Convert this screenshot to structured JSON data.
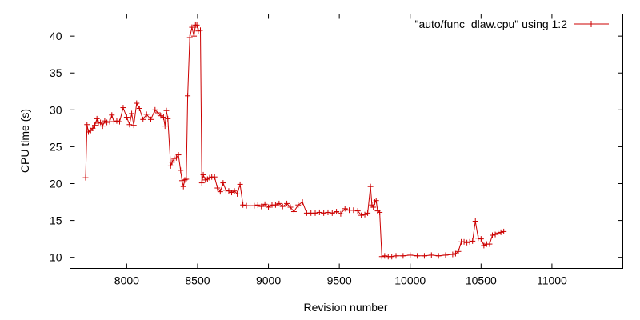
{
  "chart_data": {
    "type": "line",
    "xlabel": "Revision number",
    "ylabel": "CPU time (s)",
    "xlim": [
      7600,
      11500
    ],
    "ylim": [
      8.5,
      43
    ],
    "xticks": [
      8000,
      8500,
      9000,
      9500,
      10000,
      10500,
      11000
    ],
    "yticks": [
      10,
      15,
      20,
      25,
      30,
      35,
      40
    ],
    "legend_position": "top-right",
    "grid": false,
    "color": "#cc0000",
    "series": [
      {
        "name": "\"auto/func_dlaw.cpu\" using 1:2",
        "points": [
          [
            7710,
            20.8
          ],
          [
            7720,
            28.0
          ],
          [
            7730,
            27.0
          ],
          [
            7745,
            27.2
          ],
          [
            7760,
            27.5
          ],
          [
            7775,
            27.9
          ],
          [
            7790,
            28.8
          ],
          [
            7800,
            28.2
          ],
          [
            7815,
            28.3
          ],
          [
            7830,
            27.8
          ],
          [
            7845,
            28.5
          ],
          [
            7860,
            28.3
          ],
          [
            7880,
            28.4
          ],
          [
            7895,
            29.3
          ],
          [
            7910,
            28.4
          ],
          [
            7930,
            28.5
          ],
          [
            7950,
            28.4
          ],
          [
            7975,
            30.3
          ],
          [
            8000,
            29.0
          ],
          [
            8020,
            28.0
          ],
          [
            8035,
            29.5
          ],
          [
            8050,
            27.9
          ],
          [
            8070,
            30.9
          ],
          [
            8090,
            30.2
          ],
          [
            8115,
            28.7
          ],
          [
            8140,
            29.4
          ],
          [
            8170,
            28.7
          ],
          [
            8200,
            30.0
          ],
          [
            8220,
            29.6
          ],
          [
            8240,
            29.2
          ],
          [
            8260,
            29.0
          ],
          [
            8270,
            27.8
          ],
          [
            8280,
            29.9
          ],
          [
            8290,
            28.8
          ],
          [
            8310,
            22.4
          ],
          [
            8320,
            22.9
          ],
          [
            8335,
            23.4
          ],
          [
            8350,
            23.5
          ],
          [
            8365,
            23.9
          ],
          [
            8380,
            21.8
          ],
          [
            8390,
            20.4
          ],
          [
            8400,
            19.6
          ],
          [
            8410,
            20.5
          ],
          [
            8420,
            20.6
          ],
          [
            8430,
            31.9
          ],
          [
            8445,
            39.8
          ],
          [
            8460,
            41.2
          ],
          [
            8475,
            40.0
          ],
          [
            8485,
            41.5
          ],
          [
            8495,
            41.5
          ],
          [
            8505,
            40.7
          ],
          [
            8520,
            40.8
          ],
          [
            8530,
            20.1
          ],
          [
            8540,
            21.2
          ],
          [
            8555,
            20.5
          ],
          [
            8570,
            20.6
          ],
          [
            8585,
            20.8
          ],
          [
            8600,
            20.9
          ],
          [
            8620,
            20.9
          ],
          [
            8640,
            19.4
          ],
          [
            8660,
            18.9
          ],
          [
            8680,
            20.1
          ],
          [
            8700,
            19.1
          ],
          [
            8720,
            19.0
          ],
          [
            8740,
            18.8
          ],
          [
            8760,
            19.0
          ],
          [
            8780,
            18.6
          ],
          [
            8800,
            19.9
          ],
          [
            8820,
            17.1
          ],
          [
            8845,
            17.0
          ],
          [
            8870,
            17.0
          ],
          [
            8900,
            17.0
          ],
          [
            8925,
            17.1
          ],
          [
            8950,
            16.9
          ],
          [
            8975,
            17.2
          ],
          [
            9000,
            16.8
          ],
          [
            9025,
            17.1
          ],
          [
            9050,
            17.1
          ],
          [
            9075,
            17.3
          ],
          [
            9100,
            16.9
          ],
          [
            9130,
            17.3
          ],
          [
            9155,
            16.8
          ],
          [
            9180,
            16.2
          ],
          [
            9210,
            17.1
          ],
          [
            9240,
            17.5
          ],
          [
            9270,
            16.0
          ],
          [
            9300,
            16.0
          ],
          [
            9330,
            16.0
          ],
          [
            9360,
            16.1
          ],
          [
            9390,
            16.0
          ],
          [
            9420,
            16.1
          ],
          [
            9450,
            16.0
          ],
          [
            9480,
            16.2
          ],
          [
            9510,
            15.9
          ],
          [
            9540,
            16.6
          ],
          [
            9570,
            16.4
          ],
          [
            9600,
            16.4
          ],
          [
            9630,
            16.3
          ],
          [
            9655,
            15.7
          ],
          [
            9680,
            15.8
          ],
          [
            9700,
            16.0
          ],
          [
            9720,
            19.6
          ],
          [
            9730,
            17.1
          ],
          [
            9740,
            16.8
          ],
          [
            9750,
            17.5
          ],
          [
            9760,
            17.7
          ],
          [
            9770,
            16.3
          ],
          [
            9785,
            16.1
          ],
          [
            9800,
            10.1
          ],
          [
            9820,
            10.2
          ],
          [
            9845,
            10.1
          ],
          [
            9870,
            10.1
          ],
          [
            9900,
            10.2
          ],
          [
            9950,
            10.2
          ],
          [
            10000,
            10.3
          ],
          [
            10050,
            10.2
          ],
          [
            10100,
            10.2
          ],
          [
            10150,
            10.3
          ],
          [
            10200,
            10.2
          ],
          [
            10250,
            10.3
          ],
          [
            10300,
            10.4
          ],
          [
            10320,
            10.5
          ],
          [
            10340,
            10.8
          ],
          [
            10360,
            12.1
          ],
          [
            10380,
            12.1
          ],
          [
            10400,
            12.0
          ],
          [
            10420,
            12.1
          ],
          [
            10440,
            12.2
          ],
          [
            10460,
            14.9
          ],
          [
            10480,
            12.6
          ],
          [
            10500,
            12.5
          ],
          [
            10520,
            11.6
          ],
          [
            10540,
            11.8
          ],
          [
            10560,
            11.8
          ],
          [
            10580,
            13.0
          ],
          [
            10600,
            13.1
          ],
          [
            10620,
            13.3
          ],
          [
            10640,
            13.4
          ],
          [
            10660,
            13.5
          ]
        ]
      }
    ]
  }
}
